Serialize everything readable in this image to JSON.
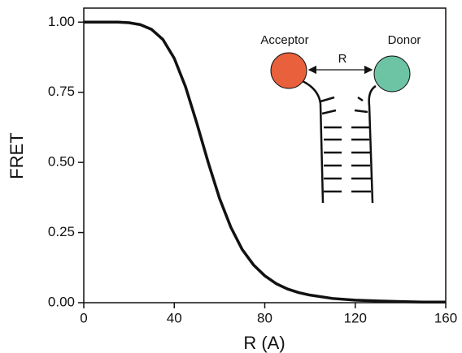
{
  "chart_data": {
    "type": "line",
    "x_label": "R (A)",
    "y_label": "FRET",
    "x": [
      0,
      5,
      10,
      15,
      20,
      25,
      30,
      35,
      40,
      45,
      50,
      55,
      60,
      65,
      70,
      75,
      80,
      85,
      90,
      95,
      100,
      110,
      120,
      130,
      140,
      150,
      160
    ],
    "series": [
      {
        "color": "#111111",
        "values": [
          1.0,
          1.0,
          1.0,
          1.0,
          0.998,
          0.991,
          0.974,
          0.938,
          0.871,
          0.769,
          0.639,
          0.5,
          0.372,
          0.269,
          0.19,
          0.135,
          0.096,
          0.068,
          0.049,
          0.036,
          0.027,
          0.015,
          0.009,
          0.006,
          0.004,
          0.002,
          0.002
        ]
      }
    ],
    "xlim": [
      0,
      160
    ],
    "xticks": [
      0,
      40,
      80,
      120,
      160
    ],
    "ylim": [
      0,
      1.05
    ],
    "yticks": [
      {
        "value": 0,
        "label": "0.00"
      },
      {
        "value": 0.25,
        "label": "0.25"
      },
      {
        "value": 0.5,
        "label": "0.50"
      },
      {
        "value": 0.75,
        "label": "0.75"
      },
      {
        "value": 1,
        "label": "1.00"
      }
    ],
    "annotations": [
      "Acceptor",
      "Donor",
      "R"
    ]
  }
}
